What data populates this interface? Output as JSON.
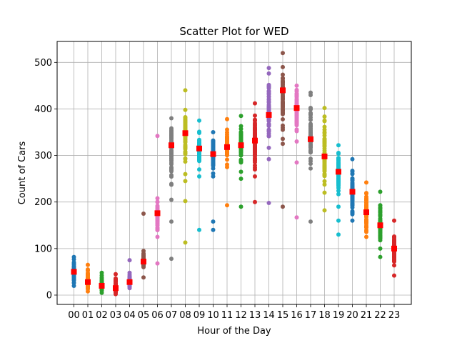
{
  "chart_data": {
    "type": "scatter",
    "title": "Scatter Plot for WED",
    "xlabel": "Hour of the Day",
    "ylabel": "Count of Cars",
    "categories": [
      "00",
      "01",
      "02",
      "03",
      "04",
      "05",
      "06",
      "07",
      "08",
      "09",
      "10",
      "11",
      "12",
      "13",
      "14",
      "15",
      "16",
      "17",
      "18",
      "19",
      "20",
      "21",
      "22",
      "23"
    ],
    "ylim": [
      -20,
      545
    ],
    "yticks": [
      0,
      100,
      200,
      300,
      400,
      500
    ],
    "grid": true,
    "mean_color": "#ff0000",
    "hours": [
      {
        "hour": "00",
        "color": "#1f77b4",
        "min": 20,
        "max": 82,
        "mean": 50,
        "outliers": []
      },
      {
        "hour": "01",
        "color": "#ff7f0e",
        "min": 8,
        "max": 65,
        "mean": 28,
        "outliers": []
      },
      {
        "hour": "02",
        "color": "#2ca02c",
        "min": 5,
        "max": 48,
        "mean": 20,
        "outliers": []
      },
      {
        "hour": "03",
        "color": "#d62728",
        "min": 2,
        "max": 45,
        "mean": 15,
        "outliers": []
      },
      {
        "hour": "04",
        "color": "#9467bd",
        "min": 15,
        "max": 48,
        "mean": 28,
        "outliers": [
          75
        ]
      },
      {
        "hour": "05",
        "color": "#8c564b",
        "min": 60,
        "max": 95,
        "mean": 72,
        "outliers": [
          38,
          175
        ]
      },
      {
        "hour": "06",
        "color": "#e377c2",
        "min": 125,
        "max": 208,
        "mean": 176,
        "outliers": [
          68,
          342
        ]
      },
      {
        "hour": "07",
        "color": "#7f7f7f",
        "min": 205,
        "max": 380,
        "mean": 322,
        "outliers": [
          78,
          158
        ]
      },
      {
        "hour": "08",
        "color": "#bcbd22",
        "min": 260,
        "max": 398,
        "mean": 348,
        "outliers": [
          113,
          202,
          245,
          440
        ]
      },
      {
        "hour": "09",
        "color": "#17becf",
        "min": 270,
        "max": 375,
        "mean": 315,
        "outliers": [
          140,
          255
        ]
      },
      {
        "hour": "10",
        "color": "#1f77b4",
        "min": 255,
        "max": 350,
        "mean": 303,
        "outliers": [
          140,
          158
        ]
      },
      {
        "hour": "11",
        "color": "#ff7f0e",
        "min": 275,
        "max": 378,
        "mean": 318,
        "outliers": [
          193
        ]
      },
      {
        "hour": "12",
        "color": "#2ca02c",
        "min": 265,
        "max": 385,
        "mean": 322,
        "outliers": [
          190,
          250
        ]
      },
      {
        "hour": "13",
        "color": "#d62728",
        "min": 255,
        "max": 412,
        "mean": 332,
        "outliers": [
          200
        ]
      },
      {
        "hour": "14",
        "color": "#9467bd",
        "min": 292,
        "max": 488,
        "mean": 387,
        "outliers": [
          198
        ]
      },
      {
        "hour": "15",
        "color": "#8c564b",
        "min": 325,
        "max": 490,
        "mean": 440,
        "outliers": [
          190,
          520
        ]
      },
      {
        "hour": "16",
        "color": "#e377c2",
        "min": 330,
        "max": 450,
        "mean": 402,
        "outliers": [
          167,
          285
        ]
      },
      {
        "hour": "17",
        "color": "#7f7f7f",
        "min": 272,
        "max": 435,
        "mean": 335,
        "outliers": [
          158
        ]
      },
      {
        "hour": "18",
        "color": "#bcbd22",
        "min": 220,
        "max": 402,
        "mean": 298,
        "outliers": [
          182
        ]
      },
      {
        "hour": "19",
        "color": "#17becf",
        "min": 190,
        "max": 322,
        "mean": 265,
        "outliers": [
          130,
          160
        ]
      },
      {
        "hour": "20",
        "color": "#1f77b4",
        "min": 160,
        "max": 292,
        "mean": 222,
        "outliers": []
      },
      {
        "hour": "21",
        "color": "#ff7f0e",
        "min": 125,
        "max": 242,
        "mean": 178,
        "outliers": []
      },
      {
        "hour": "22",
        "color": "#2ca02c",
        "min": 100,
        "max": 222,
        "mean": 150,
        "outliers": [
          82
        ]
      },
      {
        "hour": "23",
        "color": "#d62728",
        "min": 42,
        "max": 160,
        "mean": 100,
        "outliers": []
      }
    ]
  }
}
